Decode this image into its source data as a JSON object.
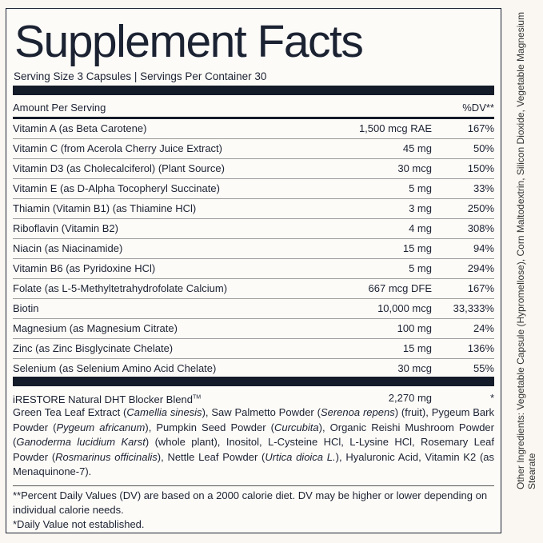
{
  "title": "Supplement Facts",
  "serving": "Serving Size 3 Capsules | Servings Per Container 30",
  "header": {
    "amount": "Amount Per Serving",
    "dv": "%DV**"
  },
  "rows": [
    {
      "name": "Vitamin A (as Beta Carotene)",
      "amount": "1,500 mcg RAE",
      "dv": "167%"
    },
    {
      "name": "Vitamin C (from Acerola Cherry Juice Extract)",
      "amount": "45 mg",
      "dv": "50%"
    },
    {
      "name": "Vitamin D3 (as Cholecalciferol) (Plant Source)",
      "amount": "30 mcg",
      "dv": "150%"
    },
    {
      "name": "Vitamin E (as D-Alpha Tocopheryl Succinate)",
      "amount": "5 mg",
      "dv": "33%"
    },
    {
      "name": "Thiamin (Vitamin B1) (as Thiamine HCl)",
      "amount": "3 mg",
      "dv": "250%"
    },
    {
      "name": "Riboflavin (Vitamin B2)",
      "amount": "4 mg",
      "dv": "308%"
    },
    {
      "name": "Niacin (as Niacinamide)",
      "amount": "15 mg",
      "dv": "94%"
    },
    {
      "name": "Vitamin B6 (as Pyridoxine HCl)",
      "amount": "5 mg",
      "dv": "294%"
    },
    {
      "name": "Folate (as L-5-Methyltetrahydrofolate Calcium)",
      "amount": "667 mcg DFE",
      "dv": "167%"
    },
    {
      "name": "Biotin",
      "amount": "10,000 mcg",
      "dv": "33,333%"
    },
    {
      "name": "Magnesium (as Magnesium Citrate)",
      "amount": "100 mg",
      "dv": "24%"
    },
    {
      "name": "Zinc (as Zinc Bisglycinate Chelate)",
      "amount": "15 mg",
      "dv": "136%"
    },
    {
      "name": "Selenium (as Selenium Amino Acid Chelate)",
      "amount": "30 mcg",
      "dv": "55%"
    }
  ],
  "blend": {
    "name": "iRESTORE Natural DHT Blocker Blend",
    "tm": "TM",
    "amount": "2,270 mg",
    "dv": "*",
    "segments": [
      {
        "t": "Green Tea Leaf Extract ("
      },
      {
        "t": "Camellia sinesis",
        "i": true
      },
      {
        "t": "), Saw Palmetto Powder ("
      },
      {
        "t": "Serenoa repens",
        "i": true
      },
      {
        "t": ") (fruit), Pygeum Bark Powder ("
      },
      {
        "t": "Pygeum africanum",
        "i": true
      },
      {
        "t": "), Pumpkin Seed Powder ("
      },
      {
        "t": "Curcubita",
        "i": true
      },
      {
        "t": "), Organic Reishi Mushroom Powder ("
      },
      {
        "t": "Ganoderma lucidium Karst",
        "i": true
      },
      {
        "t": ") (whole plant), Inositol, L-Cysteine HCl, L-Lysine HCl, Rosemary Leaf Powder ("
      },
      {
        "t": "Rosmarinus officinalis",
        "i": true
      },
      {
        "t": "), Nettle Leaf Powder ("
      },
      {
        "t": "Urtica dioica L.",
        "i": true
      },
      {
        "t": "), Hyaluronic Acid, Vitamin K2 (as Menaquinone-7)."
      }
    ]
  },
  "footer": [
    "**Percent Daily Values (DV) are based on a 2000 calorie diet. DV may be higher or lower depending on individual calorie needs.",
    "*Daily Value not established."
  ],
  "other_ingredients": "Other Ingredients: Vegetable Capsule (Hypromellose), Corn Maltodextrin, Silicon Dioxide, Vegetable Magnesium Stearate"
}
